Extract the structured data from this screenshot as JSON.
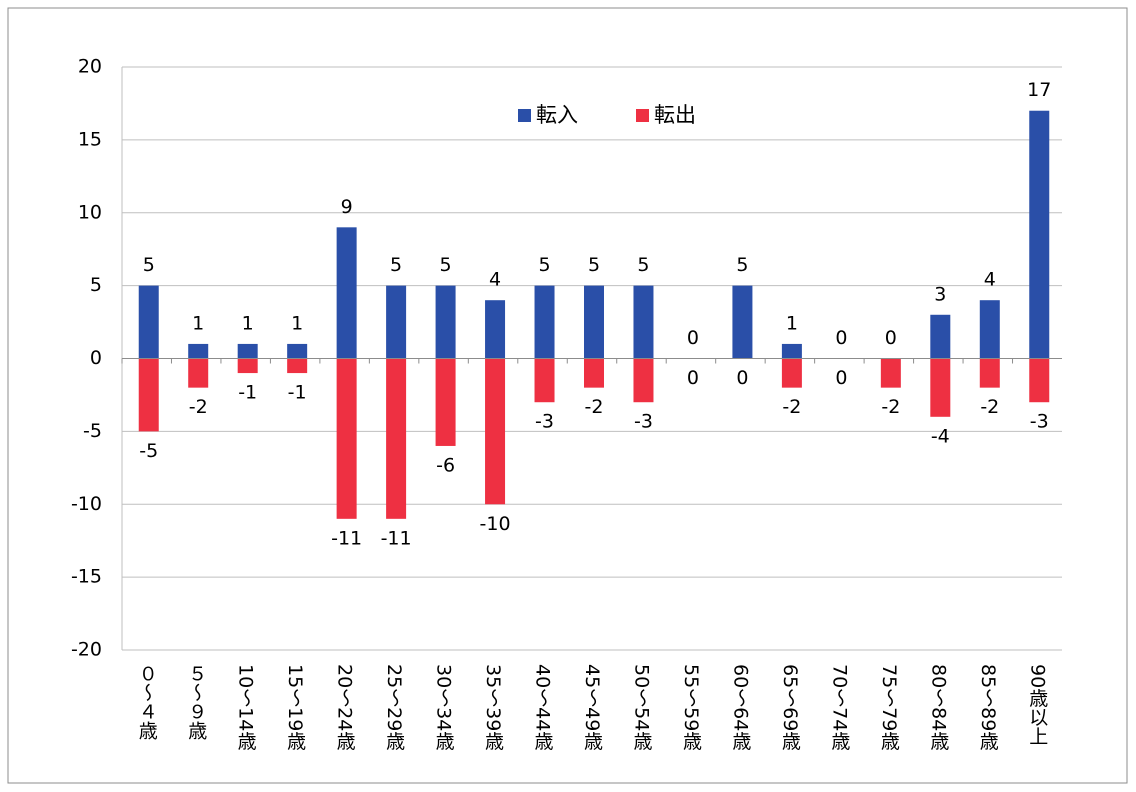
{
  "chart_data": {
    "type": "bar",
    "categories": [
      "０～４歳",
      "５～９歳",
      "10～14歳",
      "15～19歳",
      "20～24歳",
      "25～29歳",
      "30～34歳",
      "35～39歳",
      "40～44歳",
      "45～49歳",
      "50～54歳",
      "55～59歳",
      "60～64歳",
      "65～69歳",
      "70～74歳",
      "75～79歳",
      "80～84歳",
      "85～89歳",
      "90歳以上"
    ],
    "series": [
      {
        "name": "転入",
        "color": "#2a4fa8",
        "values": [
          5,
          1,
          1,
          1,
          9,
          5,
          5,
          4,
          5,
          5,
          5,
          0,
          5,
          1,
          0,
          0,
          3,
          4,
          17
        ]
      },
      {
        "name": "転出",
        "color": "#ee3042",
        "values": [
          -5,
          -2,
          -1,
          -1,
          -11,
          -11,
          -6,
          -10,
          -3,
          -2,
          -3,
          0,
          0,
          -2,
          0,
          -2,
          -4,
          -2,
          -3
        ]
      }
    ],
    "ylim": [
      -20,
      20
    ],
    "yticks": [
      -20,
      -15,
      -10,
      -5,
      0,
      5,
      10,
      15,
      20
    ],
    "grid": true,
    "legend": "top"
  }
}
